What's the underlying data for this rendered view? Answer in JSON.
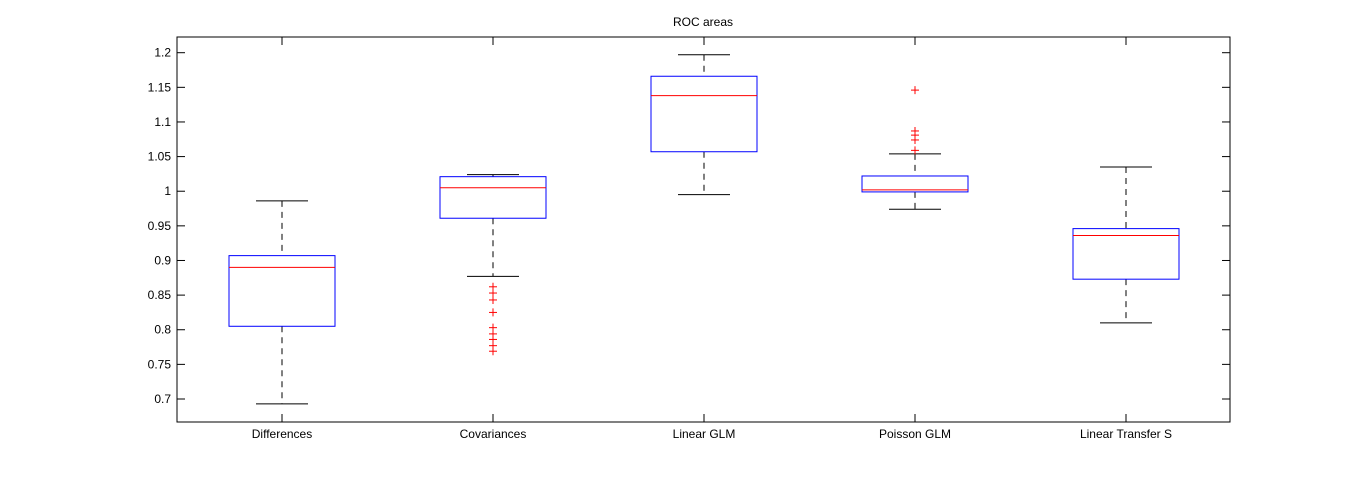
{
  "chart_data": {
    "type": "boxplot",
    "title": "ROC areas",
    "xlabel": "",
    "ylabel": "",
    "ylim": [
      0.68,
      1.225
    ],
    "yticks": [
      0.7,
      0.75,
      0.8,
      0.85,
      0.9,
      0.95,
      1,
      1.05,
      1.1,
      1.15,
      1.2
    ],
    "ytick_labels": [
      "0.7",
      "0.75",
      "0.8",
      "0.85",
      "0.9",
      "0.95",
      "1",
      "1.05",
      "1.1",
      "1.15",
      "1.2"
    ],
    "categories": [
      "Differences",
      "Covariances",
      "Linear GLM",
      "Poisson GLM",
      "Linear Transfer S"
    ],
    "boxes": [
      {
        "whisker_low": 0.693,
        "q1": 0.805,
        "median": 0.89,
        "q3": 0.907,
        "whisker_high": 0.986,
        "outliers": []
      },
      {
        "whisker_low": 0.877,
        "q1": 0.961,
        "median": 1.005,
        "q3": 1.021,
        "whisker_high": 1.024,
        "outliers": [
          0.862,
          0.853,
          0.843,
          0.825,
          0.803,
          0.794,
          0.786,
          0.777,
          0.769
        ]
      },
      {
        "whisker_low": 0.995,
        "q1": 1.057,
        "median": 1.138,
        "q3": 1.166,
        "whisker_high": 1.197,
        "outliers": []
      },
      {
        "whisker_low": 0.974,
        "q1": 0.999,
        "median": 1.002,
        "q3": 1.022,
        "whisker_high": 1.054,
        "outliers": [
          1.059,
          1.074,
          1.081,
          1.087,
          1.146
        ]
      },
      {
        "whisker_low": 0.81,
        "q1": 0.873,
        "median": 0.936,
        "q3": 0.946,
        "whisker_high": 1.035,
        "outliers": []
      }
    ],
    "grid": false,
    "colors": {
      "box": "#0000ff",
      "median": "#ff0000",
      "whisker": "#000000",
      "outlier": "#ff0000"
    }
  }
}
